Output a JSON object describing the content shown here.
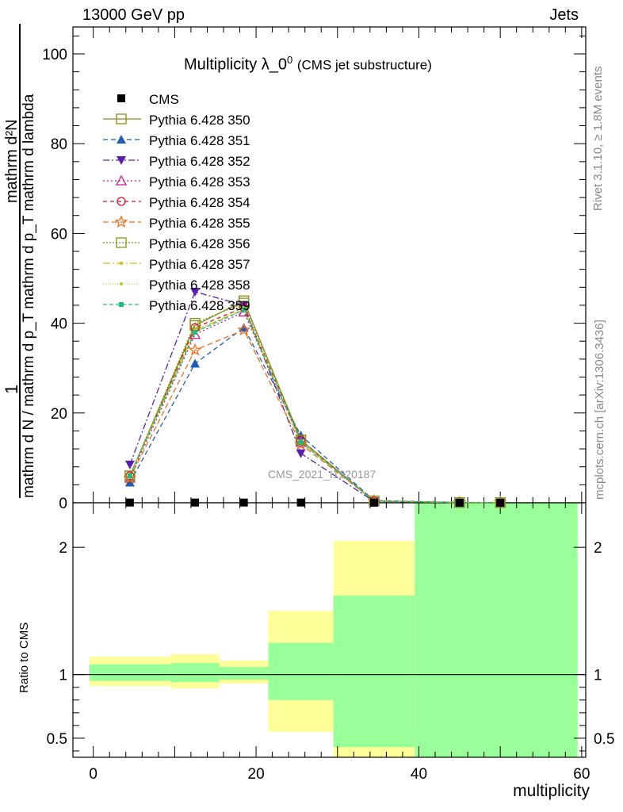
{
  "header": {
    "left": "13000 GeV pp",
    "right": "Jets"
  },
  "title": {
    "main": "Multiplicity λ_0",
    "sup": "0",
    "sub": "(CMS jet substructure)"
  },
  "side_text": {
    "rivet": "Rivet 3.1.10, ≥ 1.8M events",
    "mcplots": "mcplots.cern.ch [arXiv:1306.3436]"
  },
  "watermark": "CMS_2021_I1920187",
  "y_axis": {
    "num": "1",
    "frac_top": "mathrm d²N",
    "frac_bottom_lines": [
      "mathrm d N / mathrm d p_T mathrm d p_T mathrm d lambda"
    ],
    "ratio": "Ratio to CMS"
  },
  "x_axis_label": "multiplicity",
  "chart_data": {
    "type": "line",
    "xlim": [
      -2.5,
      60.5
    ],
    "ylim": [
      0,
      106
    ],
    "xticks": [
      0,
      20,
      40,
      60
    ],
    "yticks": [
      0,
      20,
      40,
      60,
      80,
      100
    ],
    "ratio_ylim": [
      0.35,
      2.35
    ],
    "ratio_yticks": [
      0.5,
      1,
      2
    ],
    "x": [
      4.5,
      12.5,
      18.5,
      25.5,
      34.5,
      45,
      50
    ],
    "data": {
      "name": "CMS",
      "values": [
        0.05,
        0.05,
        0.05,
        0.05,
        0.02,
        0.0,
        0.0
      ]
    },
    "series": [
      {
        "name": "Pythia 6.428 350",
        "values": [
          6.0,
          39.5,
          45.0,
          14.0,
          0.4,
          0.05,
          0.03
        ],
        "color": "#8a8a1c",
        "marker": "square-open",
        "dash": ""
      },
      {
        "name": "Pythia 6.428 351",
        "values": [
          4.5,
          31.0,
          39.0,
          15.0,
          0.5,
          0.08,
          0.04
        ],
        "color": "#1f5db5",
        "marker": "triangle-up",
        "dash": "6,4"
      },
      {
        "name": "Pythia 6.428 352",
        "values": [
          8.5,
          47.0,
          44.0,
          11.0,
          0.3,
          0.03,
          0.02
        ],
        "color": "#5a20b0",
        "marker": "triangle-down",
        "dash": "8,3,2,3"
      },
      {
        "name": "Pythia 6.428 353",
        "values": [
          5.5,
          37.5,
          42.5,
          13.5,
          0.4,
          0.05,
          0.03
        ],
        "color": "#c0208a",
        "marker": "triangle-open",
        "dash": "2,3"
      },
      {
        "name": "Pythia 6.428 354",
        "values": [
          6.0,
          39.0,
          43.5,
          14.0,
          0.4,
          0.05,
          0.03
        ],
        "color": "#e0102a",
        "marker": "circle-open",
        "dash": "5,4"
      },
      {
        "name": "Pythia 6.428 355",
        "values": [
          5.5,
          34.0,
          38.5,
          13.0,
          0.4,
          0.06,
          0.03
        ],
        "color": "#f07020",
        "marker": "star-open",
        "dash": "7,4"
      },
      {
        "name": "Pythia 6.428 356",
        "values": [
          6.0,
          40.0,
          44.5,
          14.0,
          0.4,
          0.05,
          0.03
        ],
        "color": "#7a9a18",
        "marker": "square-open",
        "dash": "2,2"
      },
      {
        "name": "Pythia 6.428 357",
        "values": [
          6.0,
          38.5,
          43.0,
          13.5,
          0.4,
          0.05,
          0.03
        ],
        "color": "#d4c010",
        "marker": "dot",
        "dash": "9,3,2,3"
      },
      {
        "name": "Pythia 6.428 358",
        "values": [
          6.0,
          38.0,
          43.5,
          13.5,
          0.4,
          0.05,
          0.03
        ],
        "color": "#b8d02a",
        "marker": "dot",
        "dash": "1,2"
      },
      {
        "name": "Pythia 6.428 359",
        "values": [
          6.0,
          38.0,
          43.0,
          13.5,
          0.4,
          0.05,
          0.03
        ],
        "color": "#18c080",
        "marker": "square-filled",
        "dash": "5,3"
      }
    ],
    "ratio_bands": [
      {
        "x0": -0.5,
        "x1": 9.5,
        "yellow": [
          0.91,
          1.14
        ],
        "green": [
          0.95,
          1.08
        ]
      },
      {
        "x0": 9.5,
        "x1": 15.5,
        "yellow": [
          0.89,
          1.16
        ],
        "green": [
          0.94,
          1.09
        ]
      },
      {
        "x0": 15.5,
        "x1": 21.5,
        "yellow": [
          0.93,
          1.11
        ],
        "green": [
          0.96,
          1.06
        ]
      },
      {
        "x0": 21.5,
        "x1": 29.5,
        "yellow": [
          0.55,
          1.5
        ],
        "green": [
          0.8,
          1.25
        ]
      },
      {
        "x0": 29.5,
        "x1": 39.5,
        "yellow": [
          0.35,
          2.05
        ],
        "green": [
          0.43,
          1.62
        ]
      },
      {
        "x0": 39.5,
        "x1": 59.5,
        "yellow": [
          0.35,
          2.35
        ],
        "green": [
          0.35,
          2.35
        ]
      }
    ]
  }
}
